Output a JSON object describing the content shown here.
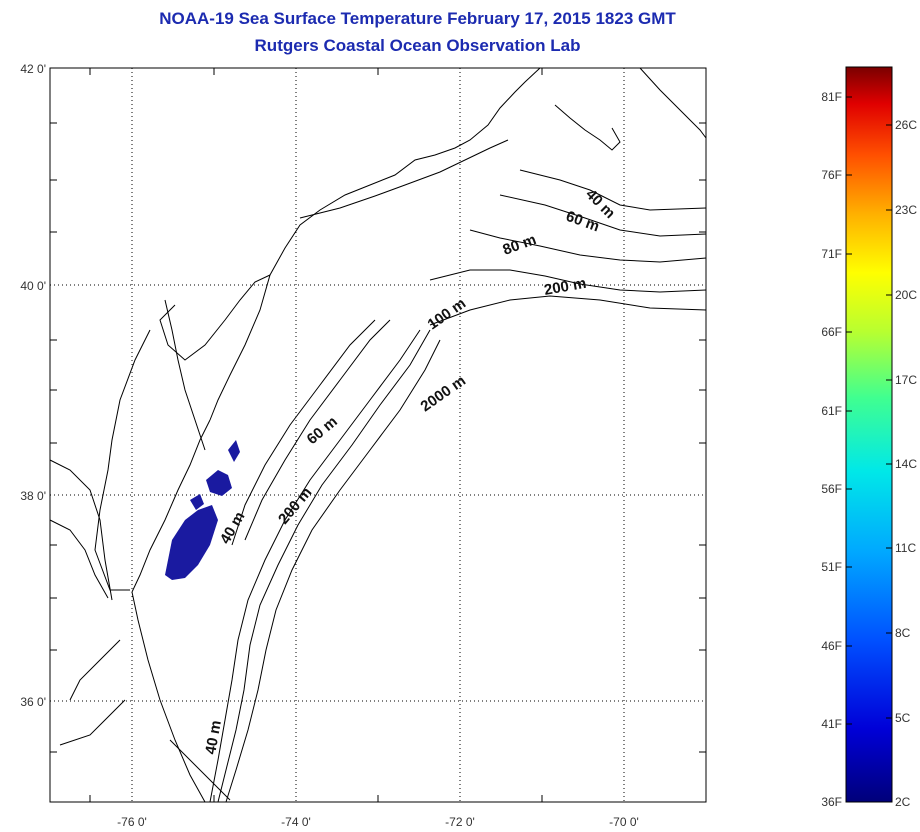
{
  "header": {
    "title_line1": "NOAA-19 Sea Surface Temperature February 17, 2015 1823 GMT",
    "title_line2": "Rutgers Coastal Ocean Observation Lab"
  },
  "map": {
    "lat_labels": [
      "42 0'",
      "40 0'",
      "38 0'",
      "36 0'"
    ],
    "lon_labels": [
      "-76 0'",
      "-74 0'",
      "-72 0'",
      "-70 0'"
    ],
    "contour_labels": [
      "40 m",
      "60 m",
      "80 m",
      "200 m",
      "100 m",
      "2000 m",
      "60 m",
      "200 m",
      "40 m",
      "40 m"
    ],
    "sst_fill_color": "#1a1aa0",
    "coast_color": "#000000"
  },
  "colorbar": {
    "fahrenheit_labels": [
      "81F",
      "76F",
      "71F",
      "66F",
      "61F",
      "56F",
      "51F",
      "46F",
      "41F",
      "36F"
    ],
    "celsius_labels": [
      "26C",
      "23C",
      "20C",
      "17C",
      "14C",
      "11C",
      "8C",
      "5C",
      "2C"
    ]
  }
}
